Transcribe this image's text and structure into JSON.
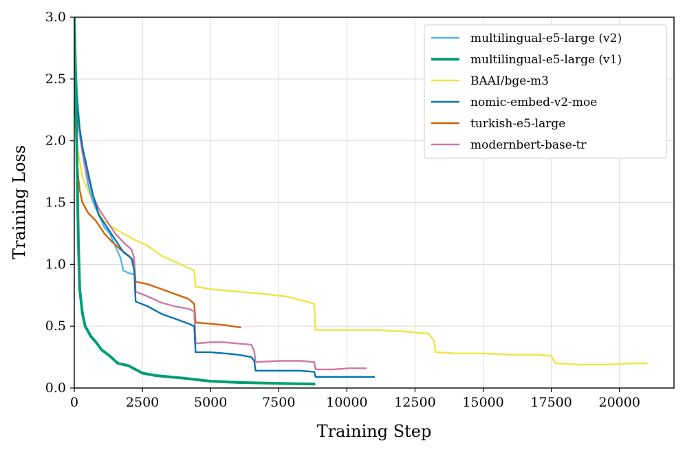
{
  "chart_data": {
    "type": "line",
    "title": "",
    "xlabel": "Training Step",
    "ylabel": "Training Loss",
    "xlim": [
      0,
      22000
    ],
    "ylim": [
      0,
      3.0
    ],
    "xticks": [
      0,
      2500,
      5000,
      7500,
      10000,
      12500,
      15000,
      17500,
      20000
    ],
    "xtick_labels": [
      "0",
      "2500",
      "5000",
      "7500",
      "10000",
      "12500",
      "15000",
      "17500",
      "20000"
    ],
    "yticks": [
      0,
      0.5,
      1.0,
      1.5,
      2.0,
      2.5,
      3.0
    ],
    "ytick_labels": [
      "0.0",
      "0.5",
      "1.0",
      "1.5",
      "2.0",
      "2.5",
      "3.0"
    ],
    "grid": true,
    "legend_position": "top-right",
    "series": [
      {
        "name": "multilingual-e5-large (v2)",
        "color": "#56B4E9",
        "x": [
          0,
          100,
          200,
          300,
          500,
          700,
          900,
          1100,
          1300,
          1500,
          1700,
          1800,
          2000,
          2150
        ],
        "y": [
          2.85,
          2.4,
          2.1,
          1.9,
          1.65,
          1.5,
          1.4,
          1.3,
          1.25,
          1.15,
          1.05,
          0.95,
          0.93,
          0.92
        ]
      },
      {
        "name": "multilingual-e5-large (v1)",
        "color": "#009E73",
        "x": [
          0,
          50,
          100,
          150,
          200,
          300,
          400,
          600,
          800,
          1000,
          1300,
          1600,
          2000,
          2500,
          3000,
          4000,
          5000,
          6000,
          7000,
          8000,
          8800
        ],
        "y": [
          3.0,
          2.5,
          1.8,
          1.2,
          0.8,
          0.6,
          0.5,
          0.42,
          0.37,
          0.31,
          0.26,
          0.2,
          0.18,
          0.12,
          0.1,
          0.08,
          0.055,
          0.045,
          0.04,
          0.035,
          0.032
        ]
      },
      {
        "name": "BAAI/bge-m3",
        "color": "#F0E442",
        "x": [
          0,
          150,
          300,
          500,
          800,
          1100,
          1400,
          1800,
          2200,
          2700,
          3200,
          3700,
          4200,
          4400,
          4450,
          5000,
          6000,
          7000,
          7800,
          8500,
          8800,
          8850,
          10000,
          11000,
          12000,
          13000,
          13200,
          13250,
          14000,
          15000,
          16000,
          17000,
          17500,
          17600,
          17650,
          18500,
          19500,
          20500,
          21000
        ],
        "y": [
          2.2,
          1.9,
          1.7,
          1.6,
          1.45,
          1.35,
          1.3,
          1.25,
          1.2,
          1.15,
          1.07,
          1.02,
          0.97,
          0.95,
          0.82,
          0.8,
          0.78,
          0.76,
          0.74,
          0.7,
          0.68,
          0.47,
          0.47,
          0.47,
          0.46,
          0.44,
          0.38,
          0.29,
          0.28,
          0.28,
          0.27,
          0.27,
          0.26,
          0.22,
          0.2,
          0.19,
          0.19,
          0.2,
          0.2
        ]
      },
      {
        "name": "nomic-embed-v2-moe",
        "color": "#0072B2",
        "x": [
          0,
          100,
          200,
          300,
          500,
          700,
          900,
          1200,
          1500,
          1800,
          2100,
          2200,
          2250,
          2700,
          3200,
          3700,
          4200,
          4400,
          4450,
          5000,
          5500,
          6000,
          6500,
          6600,
          6650,
          7500,
          8300,
          8800,
          8850,
          9500,
          10200,
          11000
        ],
        "y": [
          2.9,
          2.3,
          2.1,
          1.95,
          1.75,
          1.55,
          1.4,
          1.3,
          1.2,
          1.1,
          1.05,
          0.95,
          0.7,
          0.66,
          0.6,
          0.56,
          0.52,
          0.5,
          0.29,
          0.29,
          0.28,
          0.27,
          0.25,
          0.22,
          0.14,
          0.14,
          0.14,
          0.13,
          0.09,
          0.09,
          0.09,
          0.09
        ]
      },
      {
        "name": "turkish-e5-large",
        "color": "#D55E00",
        "x": [
          0,
          50,
          100,
          150,
          200,
          300,
          500,
          800,
          1100,
          1400,
          1700,
          2000,
          2200,
          2250,
          2700,
          3200,
          3700,
          4200,
          4400,
          4450,
          5000,
          5500,
          6100
        ],
        "y": [
          2.6,
          2.2,
          1.85,
          1.7,
          1.6,
          1.5,
          1.42,
          1.35,
          1.25,
          1.18,
          1.12,
          1.07,
          1.02,
          0.86,
          0.84,
          0.8,
          0.76,
          0.72,
          0.68,
          0.53,
          0.52,
          0.51,
          0.49
        ]
      },
      {
        "name": "modernbert-base-tr",
        "color": "#CC79A7",
        "x": [
          0,
          100,
          200,
          300,
          500,
          700,
          900,
          1200,
          1500,
          1800,
          2100,
          2200,
          2250,
          2700,
          3200,
          3700,
          4200,
          4400,
          4450,
          5000,
          5500,
          6000,
          6500,
          6600,
          6650,
          7500,
          8300,
          8800,
          8850,
          9500,
          10100,
          10700
        ],
        "y": [
          2.35,
          2.2,
          2.05,
          1.9,
          1.7,
          1.55,
          1.45,
          1.35,
          1.25,
          1.18,
          1.12,
          1.05,
          0.78,
          0.74,
          0.69,
          0.66,
          0.64,
          0.62,
          0.36,
          0.37,
          0.37,
          0.36,
          0.35,
          0.3,
          0.21,
          0.22,
          0.22,
          0.21,
          0.15,
          0.15,
          0.16,
          0.16
        ]
      }
    ]
  }
}
